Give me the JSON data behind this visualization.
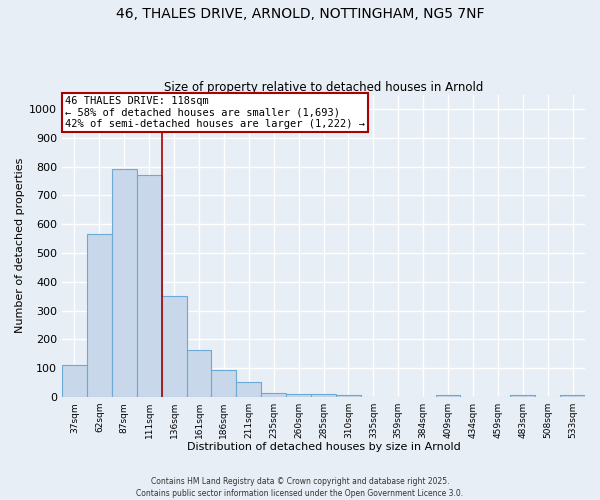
{
  "title_line1": "46, THALES DRIVE, ARNOLD, NOTTINGHAM, NG5 7NF",
  "title_line2": "Size of property relative to detached houses in Arnold",
  "xlabel": "Distribution of detached houses by size in Arnold",
  "ylabel": "Number of detached properties",
  "categories": [
    "37sqm",
    "62sqm",
    "87sqm",
    "111sqm",
    "136sqm",
    "161sqm",
    "186sqm",
    "211sqm",
    "235sqm",
    "260sqm",
    "285sqm",
    "310sqm",
    "335sqm",
    "359sqm",
    "384sqm",
    "409sqm",
    "434sqm",
    "459sqm",
    "483sqm",
    "508sqm",
    "533sqm"
  ],
  "values": [
    110,
    565,
    790,
    770,
    350,
    165,
    95,
    52,
    15,
    11,
    10,
    6,
    0,
    0,
    0,
    7,
    0,
    0,
    7,
    0,
    8
  ],
  "bar_color": "#c8d8ea",
  "bar_edge_color": "#6aaad4",
  "bar_edge_width": 0.8,
  "red_line_x": 3.5,
  "red_line_color": "#aa0000",
  "annotation_text": "46 THALES DRIVE: 118sqm\n← 58% of detached houses are smaller (1,693)\n42% of semi-detached houses are larger (1,222) →",
  "annotation_box_color": "#ffffff",
  "annotation_box_edge_color": "#aa0000",
  "ylim": [
    0,
    1050
  ],
  "yticks": [
    0,
    100,
    200,
    300,
    400,
    500,
    600,
    700,
    800,
    900,
    1000
  ],
  "background_color": "#e8eef5",
  "grid_color": "#ffffff",
  "footer_line1": "Contains HM Land Registry data © Crown copyright and database right 2025.",
  "footer_line2": "Contains public sector information licensed under the Open Government Licence 3.0."
}
